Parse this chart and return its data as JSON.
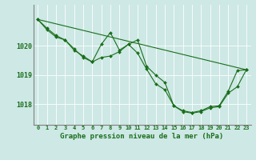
{
  "background_color": "#cde8e5",
  "grid_color": "#ffffff",
  "line_color": "#1a6e1a",
  "spine_color": "#808080",
  "xlabel": "Graphe pression niveau de la mer (hPa)",
  "xlabel_fontsize": 6.5,
  "xtick_fontsize": 5.0,
  "ytick_fontsize": 6.0,
  "xtick_labels": [
    "0",
    "1",
    "2",
    "3",
    "4",
    "5",
    "6",
    "7",
    "8",
    "9",
    "10",
    "11",
    "12",
    "13",
    "14",
    "15",
    "16",
    "17",
    "18",
    "19",
    "20",
    "21",
    "22",
    "23"
  ],
  "ytick_values": [
    1018,
    1019,
    1020
  ],
  "ylim": [
    1017.3,
    1021.4
  ],
  "xlim": [
    -0.5,
    23.5
  ],
  "series1_x": [
    0,
    1,
    2,
    3,
    4,
    5,
    6,
    7,
    8,
    9,
    10,
    11,
    12,
    13,
    14,
    15,
    16,
    17,
    18,
    19,
    20,
    21,
    22,
    23
  ],
  "series1_y": [
    1020.9,
    1020.6,
    1020.35,
    1020.2,
    1019.85,
    1019.65,
    1019.45,
    1020.05,
    1020.45,
    1019.85,
    1020.05,
    1020.2,
    1019.3,
    1019.0,
    1018.75,
    1017.95,
    1017.78,
    1017.72,
    1017.78,
    1017.92,
    1017.95,
    1018.45,
    1019.15,
    1019.18
  ],
  "series2_x": [
    0,
    1,
    2,
    3,
    4,
    5,
    6,
    7,
    8,
    9,
    10,
    11,
    12,
    13,
    14,
    15,
    16,
    17,
    18,
    19,
    20,
    21,
    22,
    23
  ],
  "series2_y": [
    1020.9,
    1020.55,
    1020.3,
    1020.2,
    1019.9,
    1019.6,
    1019.45,
    1019.6,
    1019.65,
    1019.8,
    1020.05,
    1019.75,
    1019.2,
    1018.7,
    1018.5,
    1017.95,
    1017.75,
    1017.7,
    1017.75,
    1017.88,
    1017.92,
    1018.38,
    1018.6,
    1019.18
  ],
  "series3_x": [
    0,
    23
  ],
  "series3_y": [
    1020.9,
    1019.18
  ],
  "lw": 0.8,
  "ms": 2.0
}
